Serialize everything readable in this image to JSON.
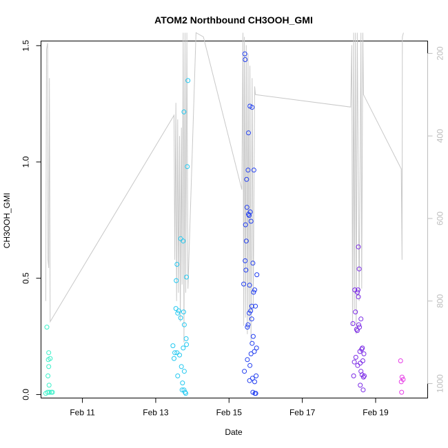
{
  "chart_data": {
    "type": "scatter",
    "title": "ATOM2 Northbound CH3OOH_GMI",
    "xlabel": "Date",
    "ylabel": "CH3OOH_GMI",
    "x_axis": {
      "units": "days (Feb 2017)",
      "range": [
        9.87,
        20.42
      ],
      "ticks": [
        11,
        13,
        15,
        17,
        19
      ],
      "tick_labels": [
        "Feb 11",
        "Feb 13",
        "Feb 15",
        "Feb 17",
        "Feb 19"
      ]
    },
    "y_axis": {
      "range": [
        -0.015,
        1.52
      ],
      "ticks": [
        0.0,
        0.5,
        1.0,
        1.5
      ],
      "tick_labels": [
        "0.0",
        "0.5",
        "1.0",
        "1.5"
      ]
    },
    "y2_axis": {
      "range": [
        1035,
        170
      ],
      "ticks": [
        200,
        400,
        600,
        800,
        1000
      ],
      "tick_labels": [
        "200",
        "400",
        "600",
        "800",
        "1000"
      ],
      "color": "#bdbdbd"
    },
    "grid": false,
    "legend": "none",
    "series": [
      {
        "color": "#38f0c8",
        "points": [
          [
            10.0,
            0.005
          ],
          [
            10.03,
            0.29
          ],
          [
            10.05,
            0.01
          ],
          [
            10.06,
            0.08
          ],
          [
            10.07,
            0.15
          ],
          [
            10.08,
            0.18
          ],
          [
            10.08,
            0.12
          ],
          [
            10.09,
            0.04
          ],
          [
            10.1,
            0.01
          ],
          [
            10.12,
            0.155
          ],
          [
            10.15,
            0.01
          ],
          [
            10.18,
            0.01
          ]
        ]
      },
      {
        "color": "#22c8f0",
        "points": [
          [
            13.47,
            0.21
          ],
          [
            13.5,
            0.155
          ],
          [
            13.52,
            0.18
          ],
          [
            13.55,
            0.37
          ],
          [
            13.56,
            0.49
          ],
          [
            13.58,
            0.56
          ],
          [
            13.58,
            0.18
          ],
          [
            13.6,
            0.35
          ],
          [
            13.6,
            0.08
          ],
          [
            13.63,
            0.36
          ],
          [
            13.65,
            0.17
          ],
          [
            13.68,
            0.33
          ],
          [
            13.68,
            0.67
          ],
          [
            13.7,
            0.12
          ],
          [
            13.72,
            0.02
          ],
          [
            13.73,
            0.05
          ],
          [
            13.75,
            0.66
          ],
          [
            13.75,
            0.2
          ],
          [
            13.76,
            0.355
          ],
          [
            13.77,
            1.215
          ],
          [
            13.77,
            0.02
          ],
          [
            13.78,
            0.1
          ],
          [
            13.78,
            0.3
          ],
          [
            13.8,
            0.01
          ],
          [
            13.82,
            0.005
          ],
          [
            13.83,
            0.24
          ],
          [
            13.84,
            0.505
          ],
          [
            13.84,
            0.215
          ],
          [
            13.86,
            0.98
          ],
          [
            13.88,
            1.35
          ]
        ]
      },
      {
        "color": "#1f3cf0",
        "points": [
          [
            15.4,
            0.475
          ],
          [
            15.42,
            0.1
          ],
          [
            15.43,
            1.465
          ],
          [
            15.44,
            1.44
          ],
          [
            15.44,
            0.575
          ],
          [
            15.45,
            0.73
          ],
          [
            15.46,
            0.535
          ],
          [
            15.47,
            0.66
          ],
          [
            15.48,
            0.925
          ],
          [
            15.49,
            0.805
          ],
          [
            15.5,
            0.29
          ],
          [
            15.5,
            0.15
          ],
          [
            15.52,
            0.3
          ],
          [
            15.52,
            0.965
          ],
          [
            15.53,
            0.775
          ],
          [
            15.53,
            1.125
          ],
          [
            15.55,
            0.35
          ],
          [
            15.55,
            0.77
          ],
          [
            15.56,
            0.47
          ],
          [
            15.56,
            0.06
          ],
          [
            15.57,
            1.24
          ],
          [
            15.57,
            0.125
          ],
          [
            15.58,
            0.785
          ],
          [
            15.59,
            0.36
          ],
          [
            15.6,
            0.175
          ],
          [
            15.6,
            0.745
          ],
          [
            15.62,
            0.38
          ],
          [
            15.62,
            0.325
          ],
          [
            15.63,
            1.235
          ],
          [
            15.63,
            0.22
          ],
          [
            15.64,
            0.07
          ],
          [
            15.65,
            0.01
          ],
          [
            15.65,
            0.565
          ],
          [
            15.66,
            0.25
          ],
          [
            15.67,
            0.44
          ],
          [
            15.68,
            0.965
          ],
          [
            15.69,
            0.185
          ],
          [
            15.7,
            0.055
          ],
          [
            15.7,
            0.45
          ],
          [
            15.71,
            0.005
          ],
          [
            15.72,
            0.38
          ],
          [
            15.73,
            0.005
          ],
          [
            15.74,
            0.08
          ],
          [
            15.75,
            0.2
          ],
          [
            15.76,
            0.515
          ]
        ]
      },
      {
        "color": "#7a28e6",
        "points": [
          [
            18.38,
            0.305
          ],
          [
            18.4,
            0.08
          ],
          [
            18.42,
            0.14
          ],
          [
            18.43,
            0.45
          ],
          [
            18.45,
            0.355
          ],
          [
            18.46,
            0.16
          ],
          [
            18.48,
            0.28
          ],
          [
            18.5,
            0.44
          ],
          [
            18.5,
            0.275
          ],
          [
            18.51,
            0.125
          ],
          [
            18.52,
            0.45
          ],
          [
            18.53,
            0.635
          ],
          [
            18.53,
            0.42
          ],
          [
            18.54,
            0.3
          ],
          [
            18.55,
            0.54
          ],
          [
            18.56,
            0.29
          ],
          [
            18.57,
            0.185
          ],
          [
            18.58,
            0.135
          ],
          [
            18.58,
            0.04
          ],
          [
            18.6,
            0.1
          ],
          [
            18.6,
            0.325
          ],
          [
            18.62,
            0.195
          ],
          [
            18.63,
            0.085
          ],
          [
            18.64,
            0.2
          ],
          [
            18.65,
            0.145
          ],
          [
            18.66,
            0.02
          ],
          [
            18.67,
            0.075
          ],
          [
            18.68,
            0.175
          ],
          [
            18.69,
            0.08
          ]
        ]
      },
      {
        "color": "#e63ce6",
        "points": [
          [
            19.68,
            0.145
          ],
          [
            19.7,
            0.055
          ],
          [
            19.71,
            0.01
          ],
          [
            19.72,
            0.075
          ],
          [
            19.75,
            0.065
          ]
        ]
      }
    ],
    "altitude_line": {
      "color": "#c8c8c8",
      "points": [
        [
          10.0,
          800
        ],
        [
          10.02,
          190
        ],
        [
          10.05,
          175
        ],
        [
          10.06,
          700
        ],
        [
          10.08,
          720
        ],
        [
          10.1,
          260
        ],
        [
          10.12,
          850
        ],
        [
          13.5,
          350
        ],
        [
          13.52,
          700
        ],
        [
          13.55,
          320
        ],
        [
          13.57,
          800
        ],
        [
          13.6,
          360
        ],
        [
          13.62,
          780
        ],
        [
          13.65,
          400
        ],
        [
          13.67,
          850
        ],
        [
          13.7,
          380
        ],
        [
          13.72,
          760
        ],
        [
          13.75,
          150
        ],
        [
          13.77,
          900
        ],
        [
          13.8,
          150
        ],
        [
          13.82,
          780
        ],
        [
          13.85,
          150
        ],
        [
          13.88,
          770
        ],
        [
          14.1,
          150
        ],
        [
          14.3,
          160
        ],
        [
          15.35,
          530
        ],
        [
          15.38,
          150
        ],
        [
          15.4,
          860
        ],
        [
          15.42,
          160
        ],
        [
          15.45,
          840
        ],
        [
          15.47,
          180
        ],
        [
          15.5,
          880
        ],
        [
          15.52,
          200
        ],
        [
          15.55,
          850
        ],
        [
          15.57,
          230
        ],
        [
          15.6,
          900
        ],
        [
          15.63,
          260
        ],
        [
          15.66,
          820
        ],
        [
          15.7,
          280
        ],
        [
          15.72,
          300
        ],
        [
          18.32,
          330
        ],
        [
          18.35,
          180
        ],
        [
          18.37,
          860
        ],
        [
          18.4,
          150
        ],
        [
          18.42,
          820
        ],
        [
          18.45,
          150
        ],
        [
          18.47,
          880
        ],
        [
          18.5,
          150
        ],
        [
          18.55,
          800
        ],
        [
          18.6,
          150
        ],
        [
          18.62,
          770
        ],
        [
          18.65,
          150
        ],
        [
          18.67,
          300
        ],
        [
          19.7,
          480
        ],
        [
          19.72,
          700
        ],
        [
          19.73,
          160
        ],
        [
          19.76,
          150
        ]
      ]
    }
  }
}
